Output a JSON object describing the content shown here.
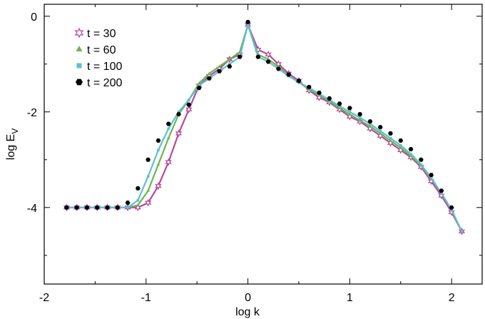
{
  "chart_data": {
    "type": "line",
    "title": "",
    "xlabel": "log k",
    "ylabel_main": "log E",
    "ylabel_sub": "V",
    "xlim": [
      -2.0,
      2.3
    ],
    "ylim": [
      -5.6,
      0.25
    ],
    "x_ticks": [
      {
        "value": -2,
        "label": "-2"
      },
      {
        "value": -1,
        "label": "-1"
      },
      {
        "value": 0,
        "label": "0"
      },
      {
        "value": 1,
        "label": "1"
      },
      {
        "value": 2,
        "label": "2"
      }
    ],
    "y_ticks": [
      {
        "value": 0,
        "label": "0"
      },
      {
        "value": -2,
        "label": "-2"
      },
      {
        "value": -4,
        "label": "-4"
      }
    ],
    "grid": false,
    "legend_position": "top-left",
    "series": [
      {
        "name": "t = 30",
        "color": "#b5489c",
        "marker": "star-open",
        "line": true,
        "x": [
          -1.78,
          -1.68,
          -1.58,
          -1.48,
          -1.38,
          -1.28,
          -1.18,
          -1.08,
          -0.98,
          -0.88,
          -0.78,
          -0.68,
          -0.58,
          -0.48,
          -0.38,
          -0.28,
          -0.18,
          -0.08,
          0.0,
          0.1,
          0.2,
          0.3,
          0.4,
          0.5,
          0.6,
          0.7,
          0.8,
          0.9,
          1.0,
          1.1,
          1.2,
          1.3,
          1.4,
          1.5,
          1.6,
          1.7,
          1.8,
          1.9,
          2.0,
          2.1
        ],
        "y": [
          -4.0,
          -4.0,
          -4.0,
          -4.0,
          -4.0,
          -4.0,
          -4.0,
          -4.0,
          -3.9,
          -3.55,
          -3.05,
          -2.45,
          -1.95,
          -1.45,
          -1.25,
          -1.1,
          -0.9,
          -0.8,
          -0.18,
          -0.7,
          -0.8,
          -1.0,
          -1.2,
          -1.35,
          -1.55,
          -1.7,
          -1.8,
          -1.95,
          -2.1,
          -2.2,
          -2.35,
          -2.5,
          -2.65,
          -2.8,
          -2.95,
          -3.15,
          -3.45,
          -3.75,
          -4.1,
          -4.5
        ]
      },
      {
        "name": "t = 60",
        "color": "#6ab550",
        "marker": "triangle",
        "line": true,
        "x": [
          -1.78,
          -1.68,
          -1.58,
          -1.48,
          -1.38,
          -1.28,
          -1.18,
          -1.08,
          -0.98,
          -0.88,
          -0.78,
          -0.68,
          -0.58,
          -0.48,
          -0.38,
          -0.28,
          -0.18,
          -0.08,
          0.0,
          0.1,
          0.2,
          0.3,
          0.4,
          0.5,
          0.6,
          0.7,
          0.8,
          0.9,
          1.0,
          1.1,
          1.2,
          1.3,
          1.4,
          1.5,
          1.6,
          1.7,
          1.8,
          1.9,
          2.0,
          2.1
        ],
        "y": [
          -4.0,
          -4.0,
          -4.0,
          -4.0,
          -4.0,
          -4.0,
          -4.0,
          -3.95,
          -3.65,
          -3.1,
          -2.55,
          -2.05,
          -1.75,
          -1.4,
          -1.2,
          -1.05,
          -0.9,
          -0.75,
          -0.18,
          -0.8,
          -0.9,
          -1.05,
          -1.25,
          -1.38,
          -1.53,
          -1.65,
          -1.78,
          -1.92,
          -2.05,
          -2.18,
          -2.3,
          -2.45,
          -2.6,
          -2.75,
          -2.92,
          -3.12,
          -3.4,
          -3.7,
          -4.05,
          -4.5
        ]
      },
      {
        "name": "t = 100",
        "color": "#5fbfcf",
        "marker": "square",
        "line": true,
        "x": [
          -1.78,
          -1.68,
          -1.58,
          -1.48,
          -1.38,
          -1.28,
          -1.18,
          -1.08,
          -0.98,
          -0.88,
          -0.78,
          -0.68,
          -0.58,
          -0.48,
          -0.38,
          -0.28,
          -0.18,
          -0.08,
          0.0,
          0.1,
          0.2,
          0.3,
          0.4,
          0.5,
          0.6,
          0.7,
          0.8,
          0.9,
          1.0,
          1.1,
          1.2,
          1.3,
          1.4,
          1.5,
          1.6,
          1.7,
          1.8,
          1.9,
          2.0,
          2.1
        ],
        "y": [
          -4.0,
          -4.0,
          -4.0,
          -4.0,
          -4.0,
          -4.0,
          -4.0,
          -3.85,
          -3.35,
          -2.8,
          -2.35,
          -2.0,
          -1.75,
          -1.45,
          -1.3,
          -1.15,
          -1.0,
          -0.85,
          -0.18,
          -0.85,
          -0.95,
          -1.1,
          -1.25,
          -1.38,
          -1.5,
          -1.62,
          -1.75,
          -1.88,
          -2.0,
          -2.12,
          -2.25,
          -2.4,
          -2.55,
          -2.7,
          -2.88,
          -3.1,
          -3.38,
          -3.7,
          -4.05,
          -4.5
        ]
      },
      {
        "name": "t = 200",
        "color": "#000000",
        "marker": "hexagon",
        "line": false,
        "x": [
          -1.78,
          -1.68,
          -1.58,
          -1.48,
          -1.38,
          -1.28,
          -1.18,
          -1.08,
          -0.98,
          -0.88,
          -0.78,
          -0.68,
          -0.58,
          -0.48,
          -0.38,
          -0.28,
          -0.18,
          -0.08,
          0.0,
          0.1,
          0.2,
          0.3,
          0.4,
          0.5,
          0.6,
          0.7,
          0.8,
          0.9,
          1.0,
          1.1,
          1.2,
          1.3,
          1.4,
          1.5,
          1.6,
          1.7,
          1.8,
          1.9,
          2.0
        ],
        "y": [
          -4.0,
          -4.0,
          -4.0,
          -4.0,
          -4.0,
          -4.0,
          -3.9,
          -3.6,
          -3.0,
          -2.6,
          -2.25,
          -2.05,
          -1.85,
          -1.5,
          -1.3,
          -1.15,
          -1.05,
          -0.85,
          -0.12,
          -0.85,
          -0.95,
          -1.1,
          -1.22,
          -1.35,
          -1.48,
          -1.6,
          -1.72,
          -1.83,
          -1.92,
          -2.05,
          -2.2,
          -2.32,
          -2.45,
          -2.6,
          -2.78,
          -3.0,
          -3.32,
          -3.65,
          -4.0
        ]
      }
    ]
  }
}
